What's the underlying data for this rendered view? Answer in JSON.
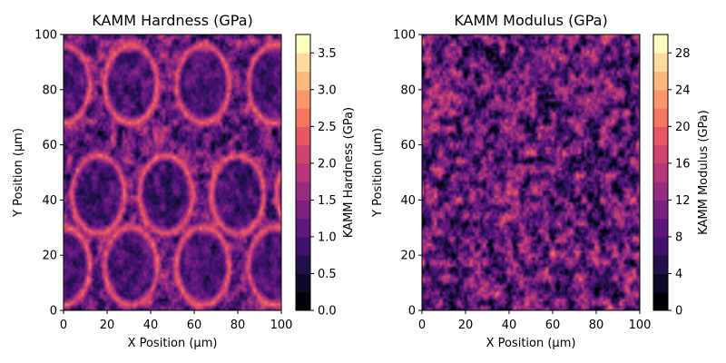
{
  "chart_data": [
    {
      "type": "heatmap",
      "title": "KAMM Hardness (GPa)",
      "xlabel": "X Position (μm)",
      "ylabel": "Y Position (μm)",
      "xlim": [
        0,
        100
      ],
      "ylim": [
        0,
        100
      ],
      "x_ticks": [
        "0",
        "20",
        "40",
        "60",
        "80",
        "100"
      ],
      "y_ticks": [
        "0",
        "20",
        "40",
        "60",
        "80",
        "100"
      ],
      "colorbar": {
        "label": "KAMM Hardness (GPa)",
        "range": [
          0,
          3.75
        ],
        "levels": 15,
        "ticks": [
          "0.0",
          "0.5",
          "1.0",
          "1.5",
          "2.0",
          "2.5",
          "3.0",
          "3.5"
        ],
        "colormap": "magma"
      },
      "field": {
        "background_mean": 1.2,
        "noise_amplitude": 0.9,
        "ring_value": 2.6,
        "cell_interior_value": 0.6,
        "cell_centers": [
          [
            0,
            82
          ],
          [
            31,
            82
          ],
          [
            64,
            82
          ],
          [
            97,
            82
          ],
          [
            16,
            42
          ],
          [
            47,
            42
          ],
          [
            80,
            42
          ],
          [
            110,
            42
          ],
          [
            -14,
            42
          ],
          [
            0,
            16
          ],
          [
            31,
            16
          ],
          [
            64,
            16
          ],
          [
            97,
            16
          ]
        ],
        "cell_radius_x": 12,
        "cell_radius_y": 14,
        "ring_thickness": 2.2
      }
    },
    {
      "type": "heatmap",
      "title": "KAMM Modulus (GPa)",
      "xlabel": "X Position (μm)",
      "ylabel": "Y Position (μm)",
      "xlim": [
        0,
        100
      ],
      "ylim": [
        0,
        100
      ],
      "x_ticks": [
        "0",
        "20",
        "40",
        "60",
        "80",
        "100"
      ],
      "y_ticks": [
        "0",
        "20",
        "40",
        "60",
        "80",
        "100"
      ],
      "colorbar": {
        "label": "KAMM Modulus (GPa)",
        "range": [
          0,
          30
        ],
        "levels": 15,
        "ticks": [
          "0",
          "4",
          "8",
          "12",
          "16",
          "20",
          "24",
          "28"
        ],
        "colormap": "magma"
      },
      "field": {
        "background_mean": 9.5,
        "noise_amplitude": 9.0,
        "ring_value": 0,
        "cell_interior_value": 0,
        "cell_centers": [],
        "cell_radius_x": 0,
        "cell_radius_y": 0,
        "ring_thickness": 0
      }
    }
  ]
}
